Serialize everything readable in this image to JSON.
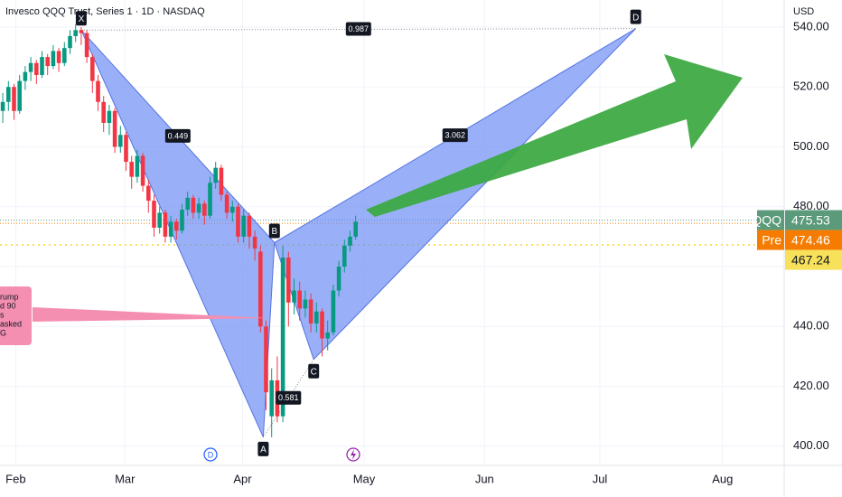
{
  "chart_data": {
    "type": "candlestick",
    "title": "Invesco QQQ Trust, Series 1 · 1D · NASDAQ",
    "currency": "USD",
    "up_color": "#089981",
    "down_color": "#f23645",
    "candles": [
      [
        512,
        518,
        508,
        515
      ],
      [
        515,
        522,
        512,
        520
      ],
      [
        520,
        521,
        509,
        512
      ],
      [
        512,
        524,
        511,
        522
      ],
      [
        522,
        527,
        519,
        525
      ],
      [
        525,
        530,
        522,
        528
      ],
      [
        528,
        529,
        521,
        524
      ],
      [
        524,
        532,
        523,
        530
      ],
      [
        530,
        531,
        524,
        527
      ],
      [
        527,
        534,
        526,
        532
      ],
      [
        532,
        533,
        525,
        528
      ],
      [
        528,
        535,
        527,
        533
      ],
      [
        533,
        539,
        531,
        537
      ],
      [
        537,
        541,
        535,
        539
      ],
      [
        539,
        540,
        534,
        538
      ],
      [
        538,
        539,
        528,
        530
      ],
      [
        530,
        531,
        518,
        522
      ],
      [
        522,
        524,
        512,
        515
      ],
      [
        515,
        517,
        505,
        508
      ],
      [
        508,
        514,
        504,
        512
      ],
      [
        512,
        513,
        498,
        500
      ],
      [
        500,
        507,
        498,
        504
      ],
      [
        504,
        505,
        492,
        495
      ],
      [
        495,
        497,
        486,
        490
      ],
      [
        490,
        499,
        488,
        497
      ],
      [
        497,
        498,
        485,
        487
      ],
      [
        487,
        489,
        478,
        482
      ],
      [
        482,
        484,
        470,
        473
      ],
      [
        473,
        480,
        471,
        478
      ],
      [
        478,
        479,
        468,
        470
      ],
      [
        470,
        477,
        468,
        475
      ],
      [
        475,
        476,
        469,
        472
      ],
      [
        472,
        481,
        471,
        479
      ],
      [
        479,
        485,
        477,
        483
      ],
      [
        483,
        484,
        476,
        478
      ],
      [
        478,
        483,
        476,
        481
      ],
      [
        481,
        482,
        474,
        477
      ],
      [
        477,
        490,
        476,
        488
      ],
      [
        488,
        495,
        486,
        493
      ],
      [
        493,
        494,
        482,
        484
      ],
      [
        484,
        485,
        476,
        478
      ],
      [
        478,
        482,
        475,
        480
      ],
      [
        480,
        481,
        468,
        470
      ],
      [
        470,
        479,
        468,
        477
      ],
      [
        477,
        478,
        466,
        470
      ],
      [
        470,
        472,
        462,
        466
      ],
      [
        465,
        467,
        438,
        440
      ],
      [
        440,
        442,
        412,
        418
      ],
      [
        410,
        426,
        403,
        422
      ],
      [
        422,
        430,
        408,
        410
      ],
      [
        410,
        467,
        408,
        463
      ],
      [
        463,
        465,
        440,
        448
      ],
      [
        448,
        456,
        444,
        452
      ],
      [
        452,
        455,
        442,
        446
      ],
      [
        446,
        452,
        443,
        449
      ],
      [
        449,
        451,
        438,
        441
      ],
      [
        441,
        448,
        438,
        445
      ],
      [
        445,
        446,
        430,
        436
      ],
      [
        436,
        442,
        432,
        438
      ],
      [
        438,
        454,
        437,
        452
      ],
      [
        452,
        462,
        450,
        460
      ],
      [
        460,
        469,
        458,
        467
      ],
      [
        467,
        472,
        465,
        470
      ],
      [
        470,
        477,
        469,
        475
      ]
    ],
    "xlim": [
      -0.5,
      139.5
    ],
    "xticks": [
      {
        "value": 2.3,
        "label": "Feb"
      },
      {
        "value": 21.8,
        "label": "Mar"
      },
      {
        "value": 42.8,
        "label": "Apr"
      },
      {
        "value": 64.5,
        "label": "May"
      },
      {
        "value": 86,
        "label": "Jun"
      },
      {
        "value": 106.6,
        "label": "Jul"
      },
      {
        "value": 128.5,
        "label": "Aug"
      }
    ],
    "ylim": [
      393.6,
      549.05
    ],
    "yticks": [
      {
        "value": 400,
        "label": "400.00"
      },
      {
        "value": 420,
        "label": "420.00"
      },
      {
        "value": 440,
        "label": "440.00"
      },
      {
        "value": 460,
        "label": "460.00"
      },
      {
        "value": 480,
        "label": "480.00"
      },
      {
        "value": 500,
        "label": "500.00"
      },
      {
        "value": 520,
        "label": "520.00"
      },
      {
        "value": 540,
        "label": "540.00"
      }
    ],
    "price_lines": [
      {
        "name": "QQQ",
        "value": 475.53,
        "color": "#5b9a7a"
      },
      {
        "name": "Pre",
        "value": 474.46,
        "color": "#f57c00"
      },
      {
        "value": 467.24,
        "color": "#f7e05a"
      }
    ],
    "pattern": {
      "color": "#6d8ef5",
      "points": [
        {
          "label": "X",
          "x": 14,
          "y": 539
        },
        {
          "label": "A",
          "x": 46.5,
          "y": 403
        },
        {
          "label": "B",
          "x": 48.5,
          "y": 468
        },
        {
          "label": "C",
          "x": 55.5,
          "y": 429
        },
        {
          "label": "D",
          "x": 113,
          "y": 539.5
        }
      ],
      "ratios": [
        0.449,
        0.581,
        3.062,
        0.987
      ]
    },
    "callout_lines": [
      "rump",
      "d 90",
      "s",
      "asked",
      "G"
    ],
    "event_label": "D"
  }
}
